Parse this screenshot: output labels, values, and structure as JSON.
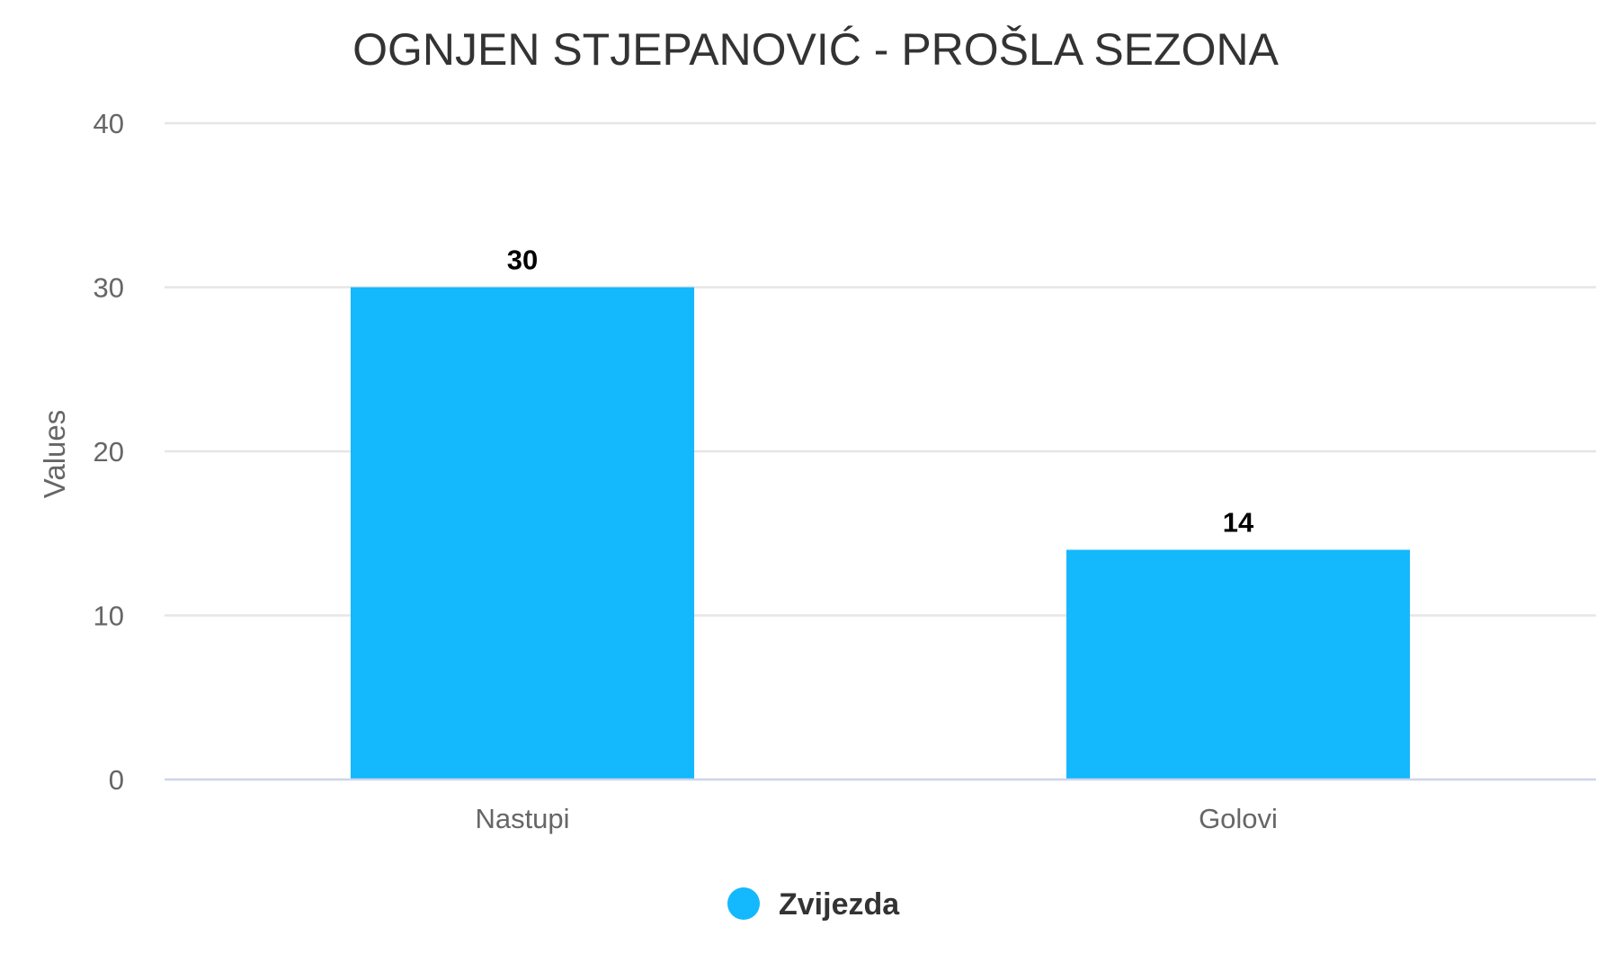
{
  "chart_data": {
    "type": "bar",
    "title": "OGNJEN STJEPANOVIĆ - PROŠLA SEZONA",
    "categories": [
      "Nastupi",
      "Golovi"
    ],
    "series": [
      {
        "name": "Zvijezda",
        "values": [
          30,
          14
        ],
        "color": "#14b8fc"
      }
    ],
    "ylabel": "Values",
    "xlabel": "",
    "ylim": [
      0,
      40
    ],
    "yticks": [
      0,
      10,
      20,
      30,
      40
    ],
    "grid": true,
    "data_labels": true,
    "legend_position": "bottom-center"
  }
}
